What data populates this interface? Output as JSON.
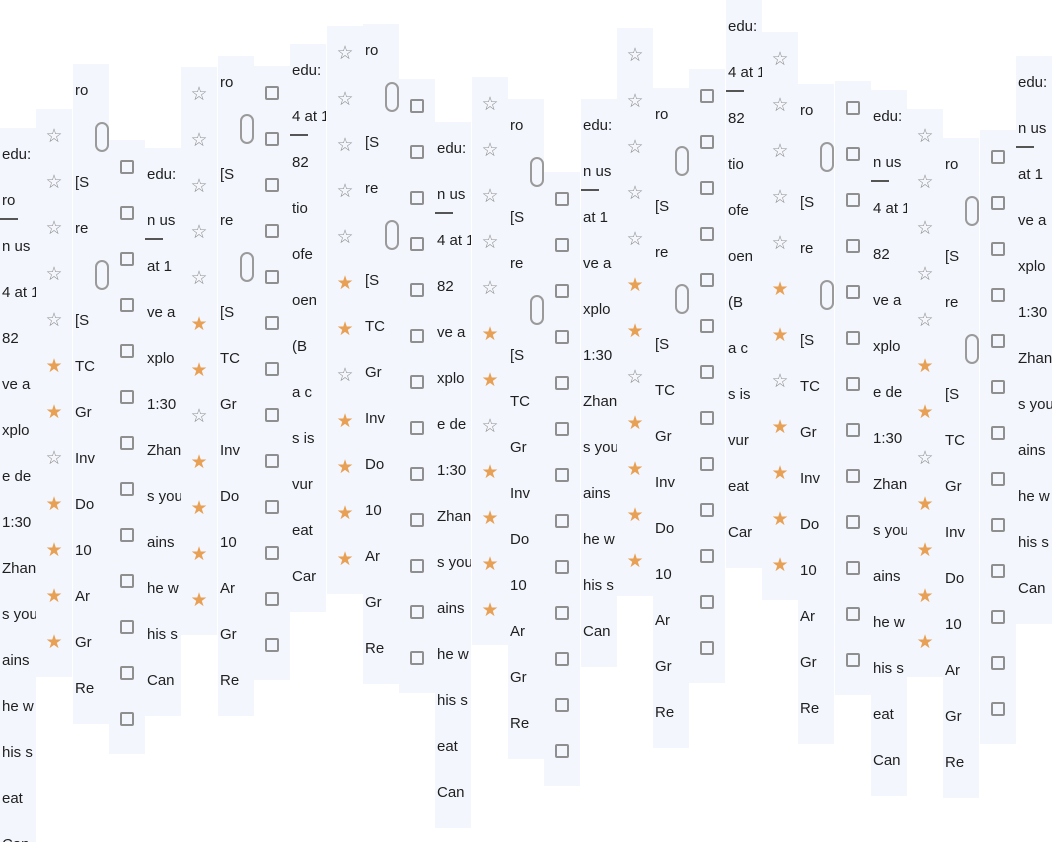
{
  "app": {
    "title": "",
    "accent_color": "#e8a055",
    "surface_color": "#f3f6fc",
    "icon_color": "#8f8f8f"
  },
  "strips": [
    {
      "kind": "text",
      "items": [
        "edu:",
        "ro",
        "n us",
        "4 at 1",
        "82",
        "ve a",
        "xplo",
        "e de",
        "1:30",
        "Zhan",
        "s you",
        "ains",
        "he w",
        "his s",
        "eat",
        "Can"
      ]
    },
    {
      "kind": "star",
      "items": [
        "star-outline-icon",
        "star-outline-icon",
        "star-outline-icon",
        "star-outline-icon",
        "star-outline-icon",
        "star-filled-icon",
        "star-filled-icon",
        "star-outline-icon",
        "star-filled-icon",
        "star-filled-icon",
        "star-filled-icon",
        "star-filled-icon"
      ]
    },
    {
      "kind": "text",
      "items": [
        "ro",
        "toggle",
        "[S",
        "re",
        "toggle",
        "[S",
        "TC",
        "Gr",
        "Inv",
        "Do",
        "10",
        "Ar",
        "Gr",
        "Re"
      ]
    },
    {
      "kind": "check",
      "items": [
        "box",
        "box",
        "box",
        "box",
        "box",
        "box",
        "box",
        "box",
        "box",
        "box",
        "box",
        "box",
        "box"
      ]
    },
    {
      "kind": "text",
      "items": [
        "edu:",
        "n us",
        "at 1",
        "ve a",
        "xplo",
        "1:30",
        "Zhan",
        "s you",
        "ains",
        "he w",
        "his s",
        "Can"
      ]
    },
    {
      "kind": "star",
      "items": [
        "star-outline-icon",
        "star-outline-icon",
        "star-outline-icon",
        "star-outline-icon",
        "star-outline-icon",
        "star-filled-icon",
        "star-filled-icon",
        "star-outline-icon",
        "star-filled-icon",
        "star-filled-icon",
        "star-filled-icon",
        "star-filled-icon"
      ]
    },
    {
      "kind": "text",
      "items": [
        "ro",
        "toggle",
        "[S",
        "re",
        "toggle",
        "[S",
        "TC",
        "Gr",
        "Inv",
        "Do",
        "10",
        "Ar",
        "Gr",
        "Re"
      ]
    },
    {
      "kind": "check",
      "items": [
        "box",
        "box",
        "box",
        "box",
        "box",
        "box",
        "box",
        "box",
        "box",
        "box",
        "box",
        "box",
        "box"
      ]
    },
    {
      "kind": "text",
      "items": [
        "edu:",
        "4 at 1",
        "82",
        "tio",
        "ofe",
        "oen",
        "(B",
        "a c",
        "s is",
        "vur",
        "eat",
        "Car"
      ]
    },
    {
      "kind": "star",
      "items": [
        "star-outline-icon",
        "star-outline-icon",
        "star-outline-icon",
        "star-outline-icon",
        "star-outline-icon",
        "star-filled-icon",
        "star-filled-icon",
        "star-outline-icon",
        "star-filled-icon",
        "star-filled-icon",
        "star-filled-icon",
        "star-filled-icon"
      ]
    },
    {
      "kind": "text",
      "items": [
        "ro",
        "toggle",
        "[S",
        "re",
        "toggle",
        "[S",
        "TC",
        "Gr",
        "Inv",
        "Do",
        "10",
        "Ar",
        "Gr",
        "Re"
      ]
    },
    {
      "kind": "check",
      "items": [
        "box",
        "box",
        "box",
        "box",
        "box",
        "box",
        "box",
        "box",
        "box",
        "box",
        "box",
        "box",
        "box"
      ]
    },
    {
      "kind": "text",
      "items": [
        "edu:",
        "n us",
        "4 at 1",
        "82",
        "ve a",
        "xplo",
        "e de",
        "1:30",
        "Zhan",
        "s you",
        "ains",
        "he w",
        "his s",
        "eat",
        "Can"
      ]
    },
    {
      "kind": "star",
      "items": [
        "star-outline-icon",
        "star-outline-icon",
        "star-outline-icon",
        "star-outline-icon",
        "star-outline-icon",
        "star-filled-icon",
        "star-filled-icon",
        "star-outline-icon",
        "star-filled-icon",
        "star-filled-icon",
        "star-filled-icon",
        "star-filled-icon"
      ]
    },
    {
      "kind": "text",
      "items": [
        "ro",
        "toggle",
        "[S",
        "re",
        "toggle",
        "[S",
        "TC",
        "Gr",
        "Inv",
        "Do",
        "10",
        "Ar",
        "Gr",
        "Re"
      ]
    },
    {
      "kind": "check",
      "items": [
        "box",
        "box",
        "box",
        "box",
        "box",
        "box",
        "box",
        "box",
        "box",
        "box",
        "box",
        "box",
        "box"
      ]
    },
    {
      "kind": "text",
      "items": [
        "edu:",
        "n us",
        "at 1",
        "ve a",
        "xplo",
        "1:30",
        "Zhan",
        "s you",
        "ains",
        "he w",
        "his s",
        "Can"
      ]
    },
    {
      "kind": "star",
      "items": [
        "star-outline-icon",
        "star-outline-icon",
        "star-outline-icon",
        "star-outline-icon",
        "star-outline-icon",
        "star-filled-icon",
        "star-filled-icon",
        "star-outline-icon",
        "star-filled-icon",
        "star-filled-icon",
        "star-filled-icon",
        "star-filled-icon"
      ]
    },
    {
      "kind": "text",
      "items": [
        "ro",
        "toggle",
        "[S",
        "re",
        "toggle",
        "[S",
        "TC",
        "Gr",
        "Inv",
        "Do",
        "10",
        "Ar",
        "Gr",
        "Re"
      ]
    },
    {
      "kind": "check",
      "items": [
        "box",
        "box",
        "box",
        "box",
        "box",
        "box",
        "box",
        "box",
        "box",
        "box",
        "box",
        "box",
        "box"
      ]
    },
    {
      "kind": "text",
      "items": [
        "edu:",
        "4 at 1",
        "82",
        "tio",
        "ofe",
        "oen",
        "(B",
        "a c",
        "s is",
        "vur",
        "eat",
        "Car"
      ]
    },
    {
      "kind": "star",
      "items": [
        "star-outline-icon",
        "star-outline-icon",
        "star-outline-icon",
        "star-outline-icon",
        "star-outline-icon",
        "star-filled-icon",
        "star-filled-icon",
        "star-outline-icon",
        "star-filled-icon",
        "star-filled-icon",
        "star-filled-icon",
        "star-filled-icon"
      ]
    },
    {
      "kind": "text",
      "items": [
        "ro",
        "toggle",
        "[S",
        "re",
        "toggle",
        "[S",
        "TC",
        "Gr",
        "Inv",
        "Do",
        "10",
        "Ar",
        "Gr",
        "Re"
      ]
    },
    {
      "kind": "check",
      "items": [
        "box",
        "box",
        "box",
        "box",
        "box",
        "box",
        "box",
        "box",
        "box",
        "box",
        "box",
        "box",
        "box"
      ]
    },
    {
      "kind": "text",
      "items": [
        "edu:",
        "n us",
        "4 at 1",
        "82",
        "ve a",
        "xplo",
        "e de",
        "1:30",
        "Zhan",
        "s you",
        "ains",
        "he w",
        "his s",
        "eat",
        "Can"
      ]
    },
    {
      "kind": "star",
      "items": [
        "star-outline-icon",
        "star-outline-icon",
        "star-outline-icon",
        "star-outline-icon",
        "star-outline-icon",
        "star-filled-icon",
        "star-filled-icon",
        "star-outline-icon",
        "star-filled-icon",
        "star-filled-icon",
        "star-filled-icon",
        "star-filled-icon"
      ]
    },
    {
      "kind": "text",
      "items": [
        "ro",
        "toggle",
        "[S",
        "re",
        "toggle",
        "[S",
        "TC",
        "Gr",
        "Inv",
        "Do",
        "10",
        "Ar",
        "Gr",
        "Re"
      ]
    },
    {
      "kind": "check",
      "items": [
        "box",
        "box",
        "box",
        "box",
        "box",
        "box",
        "box",
        "box",
        "box",
        "box",
        "box",
        "box",
        "box"
      ]
    },
    {
      "kind": "text",
      "items": [
        "edu:",
        "n us",
        "at 1",
        "ve a",
        "xplo",
        "1:30",
        "Zhan",
        "s you",
        "ains",
        "he w",
        "his s",
        "Can"
      ]
    }
  ]
}
